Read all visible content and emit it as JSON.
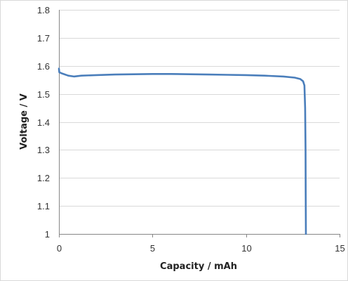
{
  "chart_data": {
    "type": "line",
    "title": "",
    "xlabel": "Capacity  /  mAh",
    "ylabel": "Voltage  /  V",
    "xlim": [
      0,
      15
    ],
    "ylim": [
      1,
      1.8
    ],
    "x_ticks": [
      0,
      5,
      10,
      15
    ],
    "x_tick_labels": [
      "0",
      "5",
      "10",
      "15"
    ],
    "y_ticks": [
      1,
      1.1,
      1.2,
      1.3,
      1.4,
      1.5,
      1.6,
      1.7,
      1.8
    ],
    "y_tick_labels": [
      "1",
      "1.1",
      "1.2",
      "1.3",
      "1.4",
      "1.5",
      "1.6",
      "1.7",
      "1.8"
    ],
    "grid": "horizontal",
    "legend": "none",
    "series": [
      {
        "color": "#4a7ebb",
        "points": [
          [
            0,
            1.59
          ],
          [
            0.02,
            1.577
          ],
          [
            0.2,
            1.572
          ],
          [
            0.5,
            1.565
          ],
          [
            0.8,
            1.562
          ],
          [
            1.2,
            1.565
          ],
          [
            2,
            1.567
          ],
          [
            3,
            1.569
          ],
          [
            4,
            1.57
          ],
          [
            5,
            1.571
          ],
          [
            6,
            1.571
          ],
          [
            7,
            1.57
          ],
          [
            8,
            1.569
          ],
          [
            9,
            1.568
          ],
          [
            10,
            1.567
          ],
          [
            11,
            1.565
          ],
          [
            12,
            1.562
          ],
          [
            12.6,
            1.558
          ],
          [
            12.9,
            1.553
          ],
          [
            13.05,
            1.545
          ],
          [
            13.12,
            1.53
          ],
          [
            13.16,
            1.45
          ],
          [
            13.18,
            1.3
          ],
          [
            13.19,
            1.15
          ],
          [
            13.2,
            1.0
          ]
        ]
      }
    ]
  }
}
